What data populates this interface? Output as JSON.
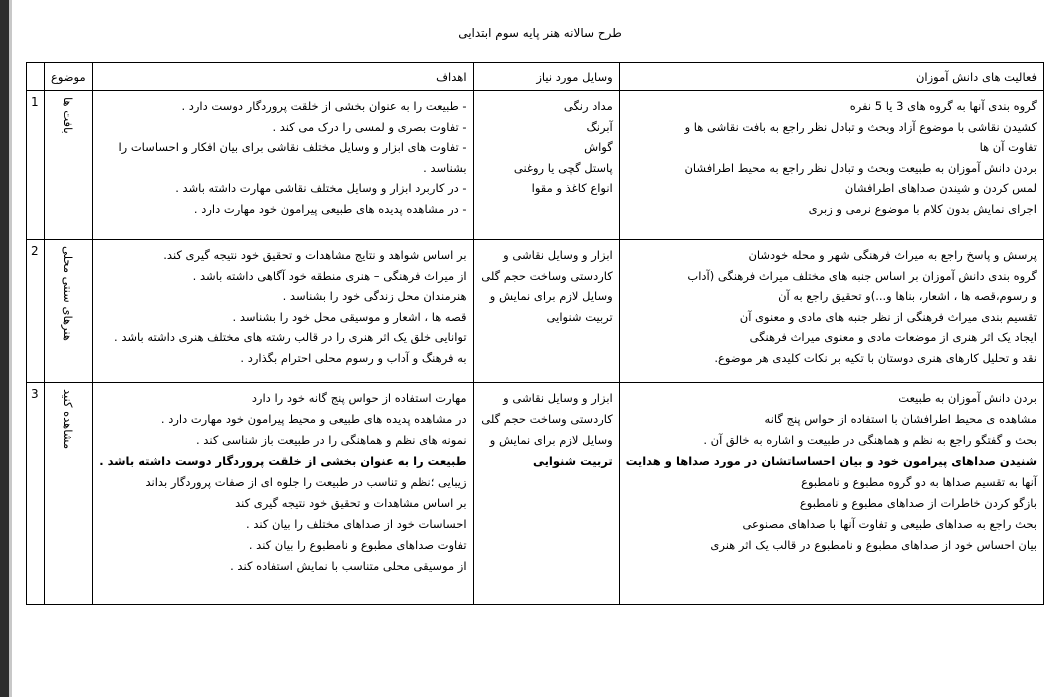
{
  "title": "طرح سالانه هنر پایه سوم ابتدایی",
  "headers": {
    "activities": "فعالیت های دانش آموزان",
    "tools": "وسایل مورد نیاز",
    "goals": "اهداف",
    "subject": "موضوع",
    "number": ""
  },
  "rows": [
    {
      "number": "1",
      "subject": "بافت ها",
      "activities": [
        {
          "text": "گروه بندی آنها به گروه های 3 یا 5 نفره"
        },
        {
          "text": "کشیدن نقاشی با موضوع آزاد وبحث و تبادل نظر راجع به بافت نقاشی ها و"
        },
        {
          "text": "تفاوت آن ها"
        },
        {
          "text": "بردن دانش آموزان به طبیعت وبحث و تبادل نظر راجع به محیط اطرافشان"
        },
        {
          "text": "لمس کردن و شیندن صداهای اطرافشان"
        },
        {
          "text": "اجرای نمایش بدون کلام با موضوع نرمی و زبری"
        }
      ],
      "tools": [
        {
          "text": "مداد رنگی"
        },
        {
          "text": "آبرنگ"
        },
        {
          "text": "گواش"
        },
        {
          "text": "پاستل گچی یا روغنی"
        },
        {
          "text": "انواع کاغذ و مقوا"
        }
      ],
      "goals": [
        {
          "text": "- طبیعت را به عنوان بخشی از خلقت پروردگار دوست دارد ."
        },
        {
          "text": "- تفاوت بصری و لمسی را درک می کند ."
        },
        {
          "text": "- تفاوت های ابزار و وسایل مختلف نقاشی برای بیان افکار و احساسات را"
        },
        {
          "text": "بشناسد ."
        },
        {
          "text": "- در کاربرد ابزار و وسایل مختلف نقاشی مهارت داشته باشد ."
        },
        {
          "text": "- در مشاهده پدیده های طبیعی پیرامون خود مهارت دارد ."
        }
      ]
    },
    {
      "number": "2",
      "subject": "هنرهای سنتی محلی",
      "activities": [
        {
          "text": "پرسش و پاسخ راجع به میراث فرهنگی شهر و محله خودشان"
        },
        {
          "text": "گروه بندی دانش آموزان بر اساس جنبه های مختلف میراث فرهنگی (آداب"
        },
        {
          "text": "و رسوم،قصه ها ، اشعار، بناها و...)و تحقیق راجع به آن"
        },
        {
          "text": "تقسیم بندی میراث فرهنگی از نظر جنبه های مادی و معنوی آن"
        },
        {
          "text": "ایجاد یک اثر هنری از موضعات مادی و معنوی میراث فرهنگی"
        },
        {
          "text": "نقد و تحلیل کارهای هنری دوستان با تکیه بر نکات کلیدی هر موضوع."
        }
      ],
      "tools": [
        {
          "text": "ابزار و وسایل نقاشی و"
        },
        {
          "text": "کاردستی وساخت حجم گلی"
        },
        {
          "text": "وسایل لازم برای نمایش و"
        },
        {
          "text": "تربیت شنوایی"
        }
      ],
      "goals": [
        {
          "text": "بر اساس شواهد و نتایج مشاهدات و تحقیق خود نتیجه گیری کند."
        },
        {
          "text": "از میراث فرهنگی – هنری منطقه خود آگاهی داشته باشد ."
        },
        {
          "text": "هنرمندان محل زندگی خود را بشناسد ."
        },
        {
          "text": "قصه ها ، اشعار و موسیقی محل خود را بشناسد ."
        },
        {
          "text": "توانایی خلق یک اثر هنری را در قالب رشته های مختلف هنری داشته باشد ."
        },
        {
          "text": "به فرهنگ و آداب و رسوم محلی احترام بگذارد ."
        }
      ]
    },
    {
      "number": "3",
      "subject": "مشاهده کنید",
      "activities": [
        {
          "text": "بردن دانش آموزان به طبیعت"
        },
        {
          "text": "مشاهده ی محیط اطرافشان با استفاده از حواس پنج گانه"
        },
        {
          "text": "بحث و گفتگو راجع به نظم و هماهنگی در طبیعت و اشاره به خالق آن ."
        },
        {
          "text": "شنیدن صداهای پیرامون خود و بیان احساساتشان در مورد صداها و هدایت",
          "bold": true
        },
        {
          "text": "آنها به تقسیم صداها به دو گروه مطبوع و نامطبوع"
        },
        {
          "text": "بازگو کردن خاطرات از صداهای مطبوع و نامطبوع"
        },
        {
          "text": "بحث راجع به صداهای طبیعی و تفاوت آنها با صداهای مصنوعی"
        },
        {
          "text": "بیان احساس خود از صداهای مطبوع و نامطبوع در قالب یک اثر هنری"
        }
      ],
      "tools": [
        {
          "text": "ابزار و وسایل نقاشی و"
        },
        {
          "text": "کاردستی وساخت حجم گلی"
        },
        {
          "text": "وسایل لازم برای نمایش و"
        },
        {
          "text": "تربیت شنوایی",
          "bold": true
        }
      ],
      "goals": [
        {
          "text": "مهارت استفاده از حواس پنج گانه خود را دارد"
        },
        {
          "text": "در مشاهده پدیده های طبیعی و محیط پیرامون خود مهارت دارد ."
        },
        {
          "text": "نمونه های نظم و هماهنگی را در طبیعت باز شناسی کند ."
        },
        {
          "text": "طبیعت را به عنوان بخشی از خلقت پروردگار دوست داشته باشد .",
          "bold": true
        },
        {
          "text": "زیبایی ؛نظم و تناسب در طبیعت را جلوه ای از صفات پروردگار بداند"
        },
        {
          "text": "بر اساس مشاهدات و تحقیق خود نتیجه گیری کند"
        },
        {
          "text": "احساسات خود از صداهای مختلف را بیان کند ."
        },
        {
          "text": "تفاوت صداهای مطبوع و نامطبوع را بیان کند ."
        },
        {
          "text": "از موسیقی محلی متناسب با نمایش استفاده کند ."
        }
      ]
    }
  ]
}
